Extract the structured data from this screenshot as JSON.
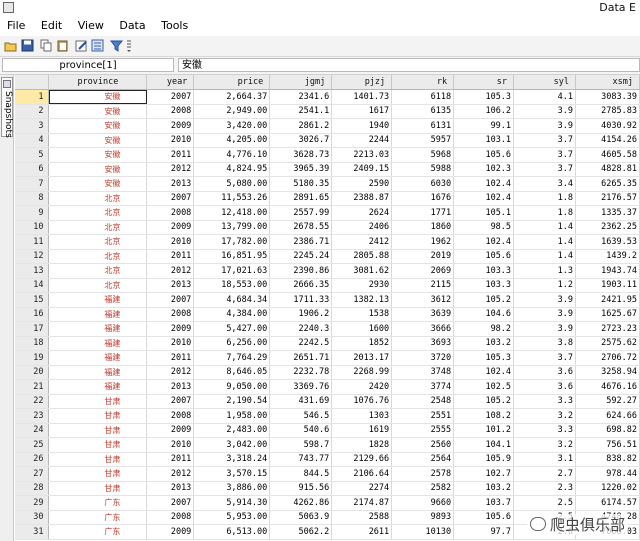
{
  "window": {
    "title": "Data E"
  },
  "menu": [
    "File",
    "Edit",
    "View",
    "Data",
    "Tools"
  ],
  "toolbar_icons": [
    "open-icon",
    "save-icon",
    "copy-icon",
    "paste-icon",
    "edit-icon",
    "browse-icon",
    "filter-icon",
    "variables-icon"
  ],
  "cell_name": "province[1]",
  "cell_value": "安徽",
  "sidebar": {
    "snapshots_label": "Snapshots"
  },
  "columns": [
    "province",
    "year",
    "price",
    "jgmj",
    "pjzj",
    "rk",
    "sr",
    "syl",
    "xsmj"
  ],
  "rows": [
    [
      "1",
      "安徽",
      "2007",
      "2,664.37",
      "2341.6",
      "1401.73",
      "6118",
      "105.3",
      "4.1",
      "3083.39"
    ],
    [
      "2",
      "安徽",
      "2008",
      "2,949.00",
      "2541.1",
      "1617",
      "6135",
      "106.2",
      "3.9",
      "2785.83"
    ],
    [
      "3",
      "安徽",
      "2009",
      "3,420.00",
      "2861.2",
      "1940",
      "6131",
      "99.1",
      "3.9",
      "4030.92"
    ],
    [
      "4",
      "安徽",
      "2010",
      "4,205.00",
      "3026.7",
      "2244",
      "5957",
      "103.1",
      "3.7",
      "4154.26"
    ],
    [
      "5",
      "安徽",
      "2011",
      "4,776.10",
      "3628.73",
      "2213.03",
      "5968",
      "105.6",
      "3.7",
      "4605.58"
    ],
    [
      "6",
      "安徽",
      "2012",
      "4,824.95",
      "3965.39",
      "2409.15",
      "5988",
      "102.3",
      "3.7",
      "4828.81"
    ],
    [
      "7",
      "安徽",
      "2013",
      "5,080.00",
      "5180.35",
      "2590",
      "6030",
      "102.4",
      "3.4",
      "6265.35"
    ],
    [
      "8",
      "北京",
      "2007",
      "11,553.26",
      "2891.65",
      "2388.87",
      "1676",
      "102.4",
      "1.8",
      "2176.57"
    ],
    [
      "9",
      "北京",
      "2008",
      "12,418.00",
      "2557.99",
      "2624",
      "1771",
      "105.1",
      "1.8",
      "1335.37"
    ],
    [
      "10",
      "北京",
      "2009",
      "13,799.00",
      "2678.55",
      "2406",
      "1860",
      "98.5",
      "1.4",
      "2362.25"
    ],
    [
      "11",
      "北京",
      "2010",
      "17,782.00",
      "2386.71",
      "2412",
      "1962",
      "102.4",
      "1.4",
      "1639.53"
    ],
    [
      "12",
      "北京",
      "2011",
      "16,851.95",
      "2245.24",
      "2805.88",
      "2019",
      "105.6",
      "1.4",
      "1439.2"
    ],
    [
      "13",
      "北京",
      "2012",
      "17,021.63",
      "2390.86",
      "3081.62",
      "2069",
      "103.3",
      "1.3",
      "1943.74"
    ],
    [
      "14",
      "北京",
      "2013",
      "18,553.00",
      "2666.35",
      "2930",
      "2115",
      "103.3",
      "1.2",
      "1903.11"
    ],
    [
      "15",
      "福建",
      "2007",
      "4,684.34",
      "1711.33",
      "1382.13",
      "3612",
      "105.2",
      "3.9",
      "2421.95"
    ],
    [
      "16",
      "福建",
      "2008",
      "4,384.00",
      "1906.2",
      "1538",
      "3639",
      "104.6",
      "3.9",
      "1625.67"
    ],
    [
      "17",
      "福建",
      "2009",
      "5,427.00",
      "2240.3",
      "1600",
      "3666",
      "98.2",
      "3.9",
      "2723.23"
    ],
    [
      "18",
      "福建",
      "2010",
      "6,256.00",
      "2242.5",
      "1852",
      "3693",
      "103.2",
      "3.8",
      "2575.62"
    ],
    [
      "19",
      "福建",
      "2011",
      "7,764.29",
      "2651.71",
      "2013.17",
      "3720",
      "105.3",
      "3.7",
      "2706.72"
    ],
    [
      "20",
      "福建",
      "2012",
      "8,646.05",
      "2232.78",
      "2268.99",
      "3748",
      "102.4",
      "3.6",
      "3258.94"
    ],
    [
      "21",
      "福建",
      "2013",
      "9,050.00",
      "3369.76",
      "2420",
      "3774",
      "102.5",
      "3.6",
      "4676.16"
    ],
    [
      "22",
      "甘肃",
      "2007",
      "2,190.54",
      "431.69",
      "1076.76",
      "2548",
      "105.2",
      "3.3",
      "592.27"
    ],
    [
      "23",
      "甘肃",
      "2008",
      "1,958.00",
      "546.5",
      "1303",
      "2551",
      "108.2",
      "3.2",
      "624.66"
    ],
    [
      "24",
      "甘肃",
      "2009",
      "2,483.00",
      "540.6",
      "1619",
      "2555",
      "101.2",
      "3.3",
      "698.82"
    ],
    [
      "25",
      "甘肃",
      "2010",
      "3,042.00",
      "598.7",
      "1828",
      "2560",
      "104.1",
      "3.2",
      "756.51"
    ],
    [
      "26",
      "甘肃",
      "2011",
      "3,318.24",
      "743.77",
      "2129.66",
      "2564",
      "105.9",
      "3.1",
      "838.82"
    ],
    [
      "27",
      "甘肃",
      "2012",
      "3,570.15",
      "844.5",
      "2106.64",
      "2578",
      "102.7",
      "2.7",
      "978.44"
    ],
    [
      "28",
      "甘肃",
      "2013",
      "3,886.00",
      "915.56",
      "2274",
      "2582",
      "103.2",
      "2.3",
      "1220.02"
    ],
    [
      "29",
      "广东",
      "2007",
      "5,914.30",
      "4262.86",
      "2174.87",
      "9660",
      "103.7",
      "2.5",
      "6174.57"
    ],
    [
      "30",
      "广东",
      "2008",
      "5,953.00",
      "5063.9",
      "2588",
      "9893",
      "105.6",
      "2.5",
      "4748.28"
    ],
    [
      "31",
      "广东",
      "2009",
      "6,513.00",
      "5062.2",
      "2611",
      "10130",
      "97.7",
      "2.6",
      "7060.03"
    ]
  ],
  "watermark": "爬虫俱乐部"
}
